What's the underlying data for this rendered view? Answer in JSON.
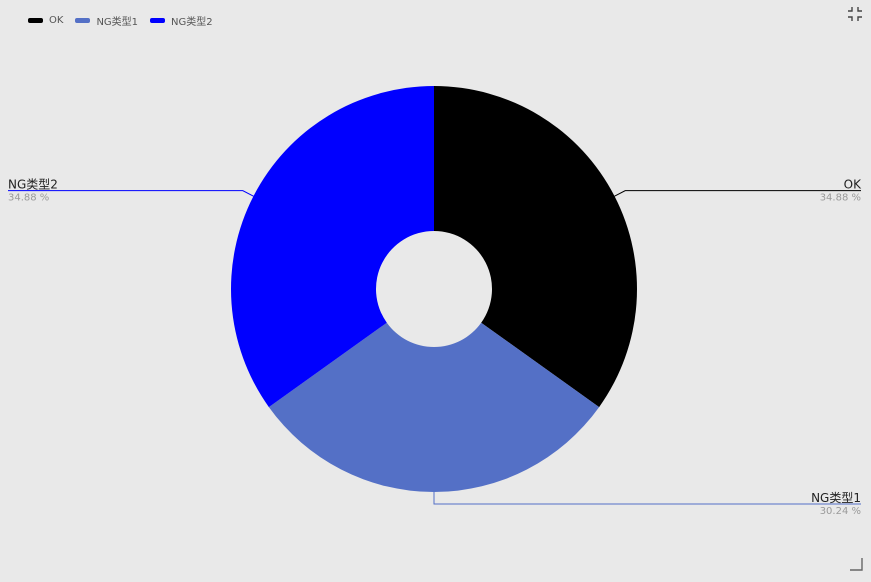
{
  "chart_data": {
    "type": "pie",
    "variant": "donut",
    "slices": [
      {
        "name": "OK",
        "value": 34.88,
        "percent_label": "34.88 %",
        "color": "#000000"
      },
      {
        "name": "NG类型1",
        "value": 30.24,
        "percent_label": "30.24 %",
        "color": "#5470c6"
      },
      {
        "name": "NG类型2",
        "value": 34.88,
        "percent_label": "34.88 %",
        "color": "#0000ff"
      }
    ],
    "legend_position": "top-left"
  },
  "icons": {
    "collapse": "collapse-icon",
    "resize": "resize-handle-icon"
  }
}
